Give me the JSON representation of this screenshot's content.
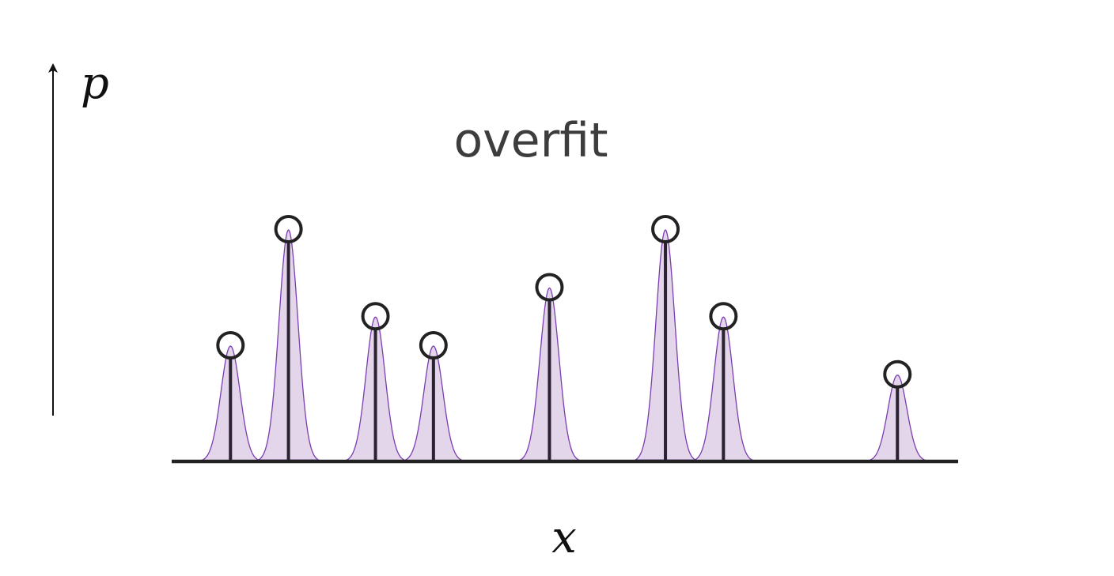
{
  "title": "overfit",
  "axes": {
    "y_label": "p",
    "x_label": "x"
  },
  "points": [
    {
      "x": 1.0,
      "p": 2.0
    },
    {
      "x": 2.0,
      "p": 4.0
    },
    {
      "x": 3.5,
      "p": 2.5
    },
    {
      "x": 4.5,
      "p": 2.0
    },
    {
      "x": 6.5,
      "p": 3.0
    },
    {
      "x": 8.5,
      "p": 4.0
    },
    {
      "x": 9.5,
      "p": 2.5
    },
    {
      "x": 12.5,
      "p": 1.5
    }
  ],
  "colors": {
    "fill": "#e3d5ea",
    "curve": "#7b3db0",
    "stem": "#2a2230",
    "marker": "#222222"
  }
}
